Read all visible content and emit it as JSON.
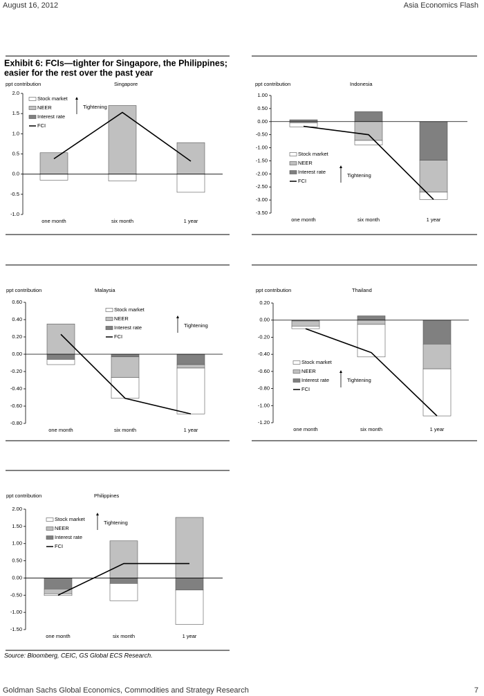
{
  "header": {
    "date": "August 16, 2012",
    "publication": "Asia Economics Flash"
  },
  "exhibit": {
    "title_line1": "Exhibit 6: FCIs—tighter for Singapore, the Philippines;",
    "title_line2": "easier for the rest over the past year"
  },
  "chart_data": [
    {
      "type": "bar",
      "title": "Singapore",
      "y_label": "ppt contribution",
      "annotation": "Tightening",
      "categories": [
        "one month",
        "six month",
        "1 year"
      ],
      "ylim": [
        -1,
        2
      ],
      "yticks": [
        {
          "value": -1,
          "label": "-1.0"
        },
        -0.5,
        {
          "value": 0,
          "label": "0.0"
        },
        0.5,
        {
          "value": 1,
          "label": "1.0"
        },
        1.5,
        {
          "value": 2,
          "label": "2.0"
        }
      ],
      "series": [
        {
          "name": "Stock market",
          "color": "#ffffff",
          "values": [
            -0.15,
            -0.17,
            -0.45
          ]
        },
        {
          "name": "NEER",
          "color": "#c0c0c0",
          "values": [
            0.53,
            1.7,
            0.78
          ]
        },
        {
          "name": "Interest rate",
          "color": "#808080",
          "values": [
            0,
            0,
            0
          ]
        },
        {
          "name": "FCI",
          "type": "line",
          "color": "#000000",
          "values": [
            0.38,
            1.53,
            0.32
          ]
        }
      ]
    },
    {
      "type": "bar",
      "title": "Indonesia",
      "y_label": "ppt contribution",
      "annotation": "Tightening",
      "categories": [
        "one month",
        "six month",
        "1 year"
      ],
      "ylim": [
        -3.5,
        1
      ],
      "yticks": [
        {
          "value": -3.5,
          "label": "-3.50"
        },
        {
          "value": -3,
          "label": "-3.00"
        },
        {
          "value": -2.5,
          "label": "-2.50"
        },
        {
          "value": -2,
          "label": "-2.00"
        },
        {
          "value": -1.5,
          "label": "-1.50"
        },
        {
          "value": -1,
          "label": "-1.00"
        },
        {
          "value": -0.5,
          "label": "-0.50"
        },
        {
          "value": 0,
          "label": "0.00"
        },
        {
          "value": 0.5,
          "label": "0.50"
        },
        {
          "value": 1,
          "label": "1.00"
        }
      ],
      "series": [
        {
          "name": "Stock market",
          "color": "#ffffff",
          "values": [
            -0.15,
            -0.17,
            -0.28
          ]
        },
        {
          "name": "NEER",
          "color": "#c0c0c0",
          "values": [
            -0.05,
            -0.72,
            -1.22
          ]
        },
        {
          "name": "Interest rate",
          "color": "#808080",
          "values": [
            0.07,
            0.38,
            -1.48
          ]
        },
        {
          "name": "FCI",
          "type": "line",
          "color": "#000000",
          "values": [
            -0.18,
            -0.5,
            -2.98
          ]
        }
      ]
    },
    {
      "type": "bar",
      "title": "Malaysia",
      "y_label": "ppt contribution",
      "annotation": "Tightening",
      "categories": [
        "one month",
        "six month",
        "1 year"
      ],
      "ylim": [
        -0.8,
        0.6
      ],
      "yticks": [
        {
          "value": -0.8,
          "label": "-0.80"
        },
        {
          "value": -0.6,
          "label": "-0.60"
        },
        {
          "value": -0.4,
          "label": "-0.40"
        },
        {
          "value": -0.2,
          "label": "-0.20"
        },
        {
          "value": 0,
          "label": "0.00"
        },
        {
          "value": 0.2,
          "label": "0.20"
        },
        {
          "value": 0.4,
          "label": "0.40"
        },
        {
          "value": 0.6,
          "label": "0.60"
        }
      ],
      "series": [
        {
          "name": "Stock market",
          "color": "#ffffff",
          "values": [
            -0.06,
            -0.24,
            -0.53
          ]
        },
        {
          "name": "NEER",
          "color": "#c0c0c0",
          "values": [
            0.35,
            -0.24,
            -0.04
          ]
        },
        {
          "name": "Interest rate",
          "color": "#808080",
          "values": [
            -0.06,
            -0.03,
            -0.12
          ]
        },
        {
          "name": "FCI",
          "type": "line",
          "color": "#000000",
          "values": [
            0.23,
            -0.51,
            -0.69
          ]
        }
      ]
    },
    {
      "type": "bar",
      "title": "Thailand",
      "y_label": "ppt contribution",
      "annotation": "Tightening",
      "categories": [
        "one month",
        "six month",
        "1 year"
      ],
      "ylim": [
        -1.2,
        0.2
      ],
      "yticks": [
        {
          "value": -1.2,
          "label": "-1.20"
        },
        {
          "value": -1,
          "label": "-1.00"
        },
        {
          "value": -0.8,
          "label": "-0.80"
        },
        {
          "value": -0.6,
          "label": "-0.60"
        },
        {
          "value": -0.4,
          "label": "-0.40"
        },
        {
          "value": -0.2,
          "label": "-0.20"
        },
        {
          "value": 0,
          "label": "0.00"
        },
        {
          "value": 0.2,
          "label": "0.20"
        }
      ],
      "series": [
        {
          "name": "Stock market",
          "color": "#ffffff",
          "values": [
            -0.03,
            -0.38,
            -0.55
          ]
        },
        {
          "name": "NEER",
          "color": "#c0c0c0",
          "values": [
            -0.06,
            -0.05,
            -0.29
          ]
        },
        {
          "name": "Interest rate",
          "color": "#808080",
          "values": [
            -0.01,
            0.05,
            -0.28
          ]
        },
        {
          "name": "FCI",
          "type": "line",
          "color": "#000000",
          "values": [
            -0.1,
            -0.38,
            -1.12
          ]
        }
      ]
    },
    {
      "type": "bar",
      "title": "Philippines",
      "y_label": "ppt contribution",
      "annotation": "Tightening",
      "categories": [
        "one month",
        "six month",
        "1 year"
      ],
      "ylim": [
        -1.5,
        2
      ],
      "yticks": [
        {
          "value": -1.5,
          "label": "-1.50"
        },
        {
          "value": -1,
          "label": "-1.00"
        },
        {
          "value": -0.5,
          "label": "-0.50"
        },
        {
          "value": 0,
          "label": "0.00"
        },
        {
          "value": 0.5,
          "label": "0.50"
        },
        {
          "value": 1,
          "label": "1.00"
        },
        {
          "value": 1.5,
          "label": "1.50"
        },
        {
          "value": 2,
          "label": "2.00"
        }
      ],
      "series": [
        {
          "name": "Stock market",
          "color": "#ffffff",
          "values": [
            -0.05,
            -0.5,
            -1.0
          ]
        },
        {
          "name": "NEER",
          "color": "#c0c0c0",
          "values": [
            -0.14,
            1.08,
            1.76
          ]
        },
        {
          "name": "Interest rate",
          "color": "#808080",
          "values": [
            -0.32,
            -0.16,
            -0.35
          ]
        },
        {
          "name": "FCI",
          "type": "line",
          "color": "#000000",
          "values": [
            -0.5,
            0.42,
            0.42
          ]
        }
      ]
    }
  ],
  "source": "Source: Bloomberg, CEIC, GS Global ECS Research.",
  "footer": {
    "left": "Goldman Sachs Global Economics, Commodities and Strategy Research",
    "page": "7"
  }
}
